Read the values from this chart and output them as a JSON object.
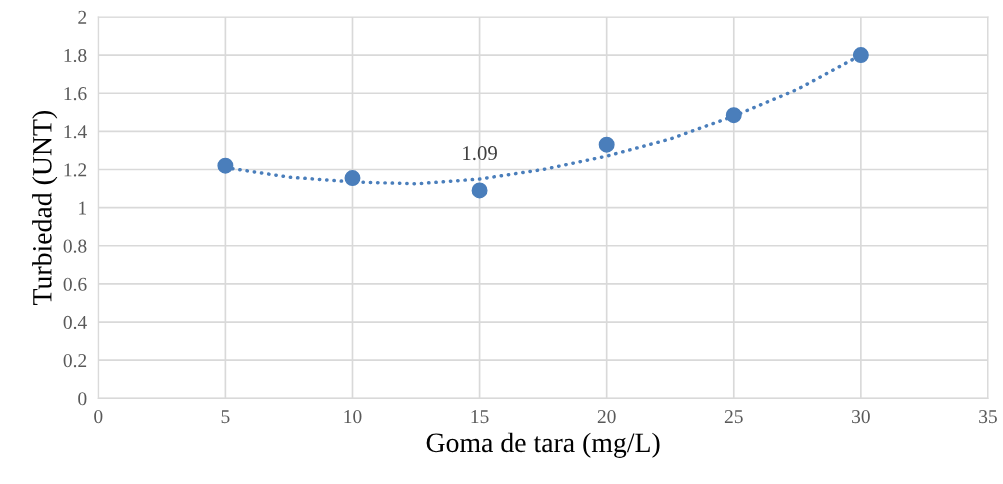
{
  "chart_data": {
    "type": "scatter",
    "xlabel": "Goma de tara (mg/L)",
    "ylabel": "Turbiedad (UNT)",
    "xlim": [
      0,
      35
    ],
    "xticks": [
      0,
      5,
      10,
      15,
      20,
      25,
      30,
      35
    ],
    "ylim": [
      0,
      2
    ],
    "yticks": [
      0,
      {
        "value": 0.2,
        "label": "0.2"
      },
      {
        "value": 0.4,
        "label": "0.4"
      },
      {
        "value": 0.6,
        "label": "0.6"
      },
      {
        "value": 0.8,
        "label": "0.8"
      },
      1,
      {
        "value": 1.2,
        "label": "1.2"
      },
      {
        "value": 1.4,
        "label": "1.4"
      },
      {
        "value": 1.6,
        "label": "1.6"
      },
      {
        "value": 1.8,
        "label": "1.8"
      },
      2
    ],
    "grid": true,
    "series": [
      {
        "marker": "circle",
        "color": "#4a7ebb",
        "x": [
          5,
          10,
          15,
          20,
          25,
          30
        ],
        "values": [
          1.22,
          1.155,
          1.09,
          1.33,
          1.485,
          1.8
        ],
        "value_labels": [
          null,
          null,
          "1.09",
          null,
          null,
          null
        ]
      },
      {
        "type": "line",
        "marker": "none",
        "color": "#4a7ebb",
        "line_style": "dotted",
        "x": [
          5,
          7.5,
          10,
          12.5,
          15,
          17.5,
          20,
          22.5,
          25,
          27.5,
          30
        ],
        "values": [
          1.21,
          1.16,
          1.135,
          1.125,
          1.15,
          1.2,
          1.27,
          1.36,
          1.48,
          1.62,
          1.8
        ]
      }
    ]
  }
}
